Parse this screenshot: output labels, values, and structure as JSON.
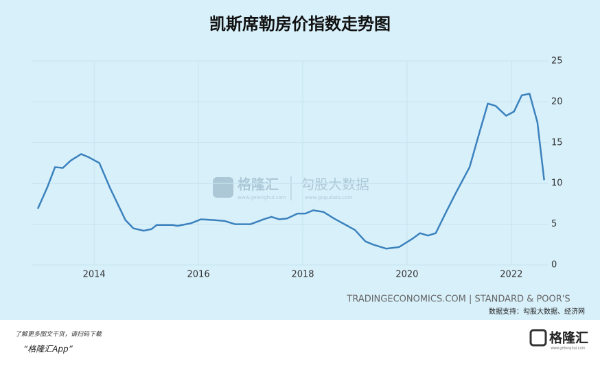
{
  "chart_data": {
    "type": "line",
    "title": "凯斯席勒房价指数走势图",
    "x": [
      2012.92,
      2013.1,
      2013.25,
      2013.4,
      2013.55,
      2013.75,
      2013.9,
      2014.1,
      2014.3,
      2014.45,
      2014.6,
      2014.75,
      2014.95,
      2015.1,
      2015.2,
      2015.5,
      2015.6,
      2015.85,
      2016.05,
      2016.3,
      2016.5,
      2016.7,
      2017.0,
      2017.25,
      2017.4,
      2017.55,
      2017.7,
      2017.9,
      2018.05,
      2018.2,
      2018.4,
      2018.6,
      2018.8,
      2019.0,
      2019.2,
      2019.35,
      2019.6,
      2019.85,
      2020.1,
      2020.25,
      2020.4,
      2020.55,
      2020.75,
      2020.95,
      2021.2,
      2021.4,
      2021.55,
      2021.7,
      2021.9,
      2022.05,
      2022.2,
      2022.35,
      2022.5,
      2022.63
    ],
    "series": [
      {
        "name": "凯斯席勒房价指数",
        "color": "#3b82bd",
        "values": [
          6.9,
          9.5,
          12.0,
          11.9,
          12.8,
          13.6,
          13.2,
          12.5,
          9.5,
          7.5,
          5.5,
          4.5,
          4.2,
          4.4,
          4.9,
          4.9,
          4.8,
          5.1,
          5.6,
          5.5,
          5.4,
          5.0,
          5.0,
          5.6,
          5.9,
          5.6,
          5.7,
          6.3,
          6.3,
          6.7,
          6.5,
          5.7,
          5.0,
          4.3,
          2.9,
          2.5,
          2.0,
          2.2,
          3.2,
          3.9,
          3.6,
          3.9,
          6.5,
          9.0,
          12.0,
          16.5,
          19.8,
          19.5,
          18.3,
          18.8,
          20.8,
          21.0,
          17.5,
          10.4
        ]
      }
    ],
    "xlim": [
      2012.8,
      2022.7
    ],
    "xticks": [
      2014,
      2016,
      2018,
      2020,
      2022
    ],
    "ylim": [
      0,
      25
    ],
    "yticks": [
      0,
      5,
      10,
      15,
      20,
      25
    ],
    "grid": true,
    "source": "TRADINGECONOMICS.COM | STANDARD & POOR'S",
    "credit": "数据支持：勾股大数据、经济网"
  },
  "watermark": {
    "brand": "格隆汇",
    "brand_url": "www.gelonghui.com",
    "partner": "勾股大数据",
    "partner_url": "www.gogudata.com"
  },
  "footer": {
    "note": "了解更多图文干货，请扫码下载",
    "app": "“格隆汇App”",
    "logo": "格隆汇",
    "logo_url": "www.gelonghui.com"
  }
}
